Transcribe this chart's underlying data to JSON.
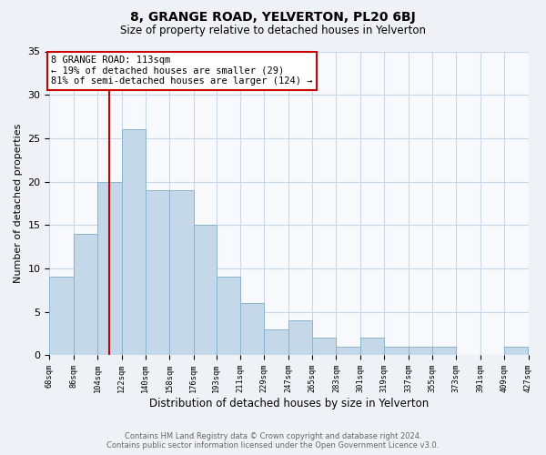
{
  "title": "8, GRANGE ROAD, YELVERTON, PL20 6BJ",
  "subtitle": "Size of property relative to detached houses in Yelverton",
  "xlabel": "Distribution of detached houses by size in Yelverton",
  "ylabel": "Number of detached properties",
  "bar_color": "#c5d8ea",
  "bar_edge_color": "#8ab4cf",
  "bins": [
    68,
    86,
    104,
    122,
    140,
    158,
    176,
    193,
    211,
    229,
    247,
    265,
    283,
    301,
    319,
    337,
    355,
    373,
    391,
    409,
    427
  ],
  "counts": [
    9,
    14,
    20,
    26,
    19,
    19,
    15,
    9,
    6,
    3,
    4,
    2,
    1,
    2,
    1,
    1,
    1,
    0,
    0,
    1
  ],
  "tick_labels": [
    "68sqm",
    "86sqm",
    "104sqm",
    "122sqm",
    "140sqm",
    "158sqm",
    "176sqm",
    "193sqm",
    "211sqm",
    "229sqm",
    "247sqm",
    "265sqm",
    "283sqm",
    "301sqm",
    "319sqm",
    "337sqm",
    "355sqm",
    "373sqm",
    "391sqm",
    "409sqm",
    "427sqm"
  ],
  "ylim": [
    0,
    35
  ],
  "yticks": [
    0,
    5,
    10,
    15,
    20,
    25,
    30,
    35
  ],
  "property_line_x": 113,
  "annotation_line1": "8 GRANGE ROAD: 113sqm",
  "annotation_line2": "← 19% of detached houses are smaller (29)",
  "annotation_line3": "81% of semi-detached houses are larger (124) →",
  "annotation_box_color": "#ffffff",
  "annotation_border_color": "#cc0000",
  "line_color": "#cc0000",
  "footer_line1": "Contains HM Land Registry data © Crown copyright and database right 2024.",
  "footer_line2": "Contains public sector information licensed under the Open Government Licence v3.0.",
  "background_color": "#eef2f6",
  "plot_background_color": "#f7f9fc",
  "grid_color": "#c8d8e8"
}
